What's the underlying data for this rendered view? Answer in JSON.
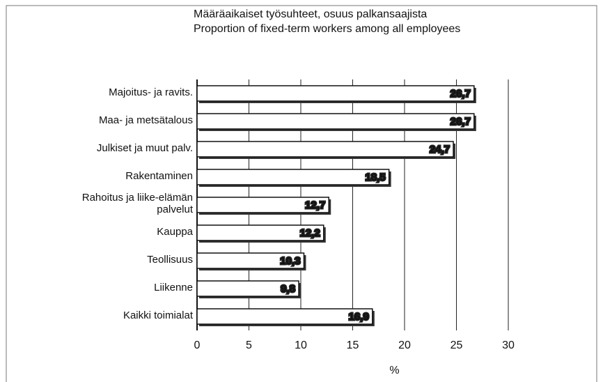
{
  "chart_data": {
    "type": "bar",
    "orientation": "horizontal",
    "title": "Määräaikaiset työsuhteet, osuus palkansaajista",
    "subtitle": "Proportion of fixed-term  workers among all employees",
    "categories": [
      "Majoitus- ja ravits.",
      "Maa- ja metsätalous",
      "Julkiset ja muut palv.",
      "Rakentaminen",
      "Rahoitus ja liike-elämän palvelut",
      "Kauppa",
      "Teollisuus",
      "Liikenne",
      "Kaikki toimialat"
    ],
    "values": [
      26.7,
      26.7,
      24.7,
      18.5,
      12.7,
      12.2,
      10.3,
      9.8,
      16.9
    ],
    "value_labels": [
      "26,7",
      "26,7",
      "24,7",
      "18,5",
      "12,7",
      "12,2",
      "10,3",
      "9,8",
      "16,9"
    ],
    "color": "#ffffff",
    "xlabel": "%",
    "xlim": [
      0,
      30
    ],
    "xticks": [
      0,
      5,
      10,
      15,
      20,
      25,
      30
    ],
    "grid": true
  }
}
